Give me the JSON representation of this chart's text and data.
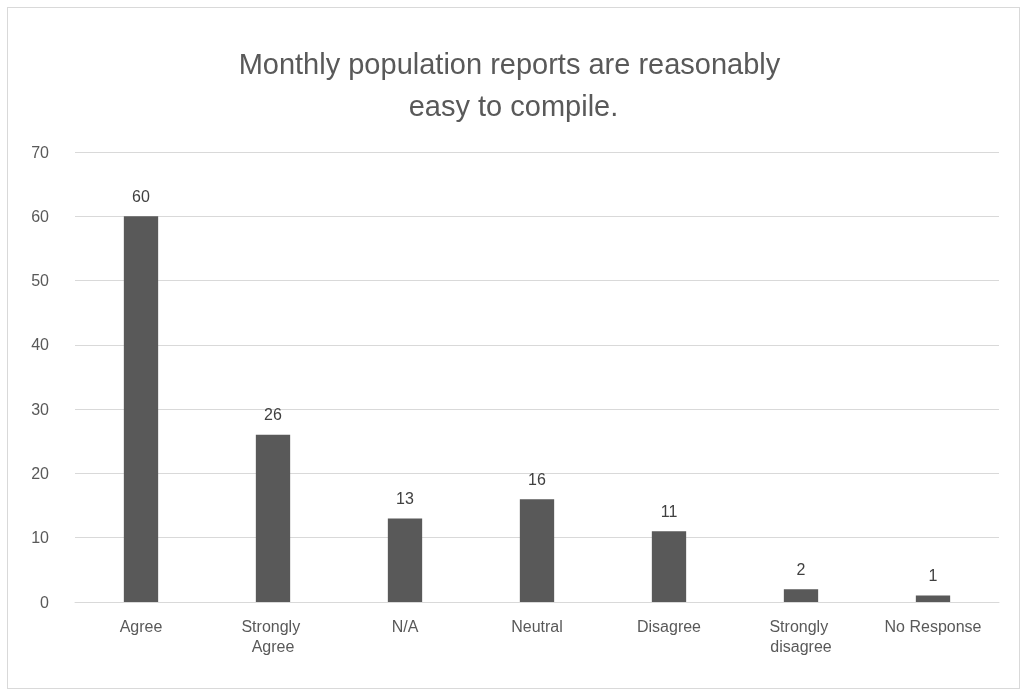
{
  "chart_data": {
    "type": "bar",
    "title": "Monthly population reports are reasonably easy to compile.",
    "categories": [
      "Agree",
      "Strongly Agree",
      "N/A",
      "Neutral",
      "Disagree",
      "Strongly disagree",
      "No Response"
    ],
    "values": [
      60,
      26,
      13,
      16,
      11,
      2,
      1
    ],
    "color": "#595959",
    "ylim": [
      0,
      70
    ],
    "yticks": [
      0,
      10,
      20,
      30,
      40,
      50,
      60,
      70
    ],
    "grid": "y",
    "data_labels": true
  }
}
